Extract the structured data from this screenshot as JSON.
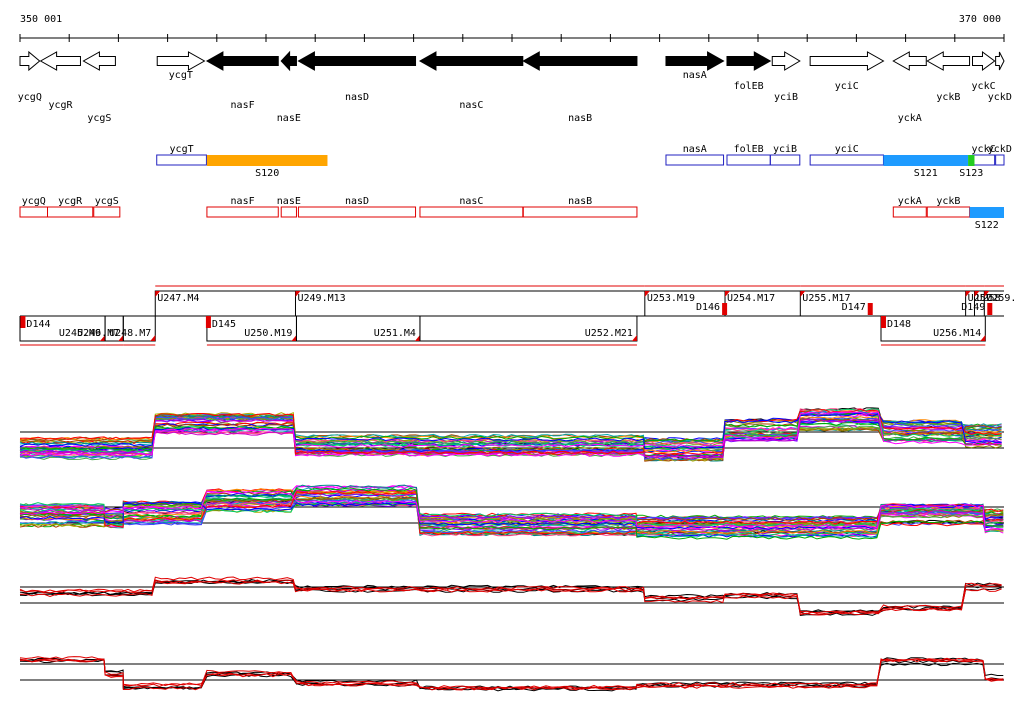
{
  "axis": {
    "start_label": "350 001",
    "end_label": "370 000",
    "start": 350001,
    "end": 370000
  },
  "colors": {
    "forward_gene": "#ffffff",
    "black_gene": "#000000",
    "blue_feature": "#2020c0",
    "red_feature": "#e00000",
    "orange_segment": "#ffa500",
    "sky_segment": "#1e9bff",
    "green_segment": "#22cc22",
    "red_trace": "#e00000",
    "black_trace": "#000000"
  },
  "genes": [
    {
      "name": "ycgQ",
      "start": 350001,
      "end": 350400,
      "strand": "+",
      "fill": "white"
    },
    {
      "name": "ycgR",
      "start": 350420,
      "end": 351230,
      "strand": "-",
      "fill": "white"
    },
    {
      "name": "ycgS",
      "start": 351290,
      "end": 351940,
      "strand": "-",
      "fill": "white"
    },
    {
      "name": "ycgT",
      "start": 352790,
      "end": 353750,
      "strand": "+",
      "fill": "white"
    },
    {
      "name": "nasF",
      "start": 353800,
      "end": 355250,
      "strand": "-",
      "fill": "black"
    },
    {
      "name": "nasE",
      "start": 355310,
      "end": 355620,
      "strand": "-",
      "fill": "black"
    },
    {
      "name": "nasD",
      "start": 355660,
      "end": 358040,
      "strand": "-",
      "fill": "black"
    },
    {
      "name": "nasC",
      "start": 358130,
      "end": 360220,
      "strand": "-",
      "fill": "black"
    },
    {
      "name": "nasB",
      "start": 360230,
      "end": 362540,
      "strand": "-",
      "fill": "black"
    },
    {
      "name": "nasA",
      "start": 363130,
      "end": 364300,
      "strand": "+",
      "fill": "black"
    },
    {
      "name": "folEB",
      "start": 364370,
      "end": 365250,
      "strand": "+",
      "fill": "black"
    },
    {
      "name": "yciB",
      "start": 365290,
      "end": 365850,
      "strand": "+",
      "fill": "white"
    },
    {
      "name": "yciC",
      "start": 366060,
      "end": 367550,
      "strand": "+",
      "fill": "white"
    },
    {
      "name": "yckA",
      "start": 367750,
      "end": 368420,
      "strand": "-",
      "fill": "white"
    },
    {
      "name": "yckB",
      "start": 368440,
      "end": 369300,
      "strand": "-",
      "fill": "white"
    },
    {
      "name": "yckC",
      "start": 369360,
      "end": 369810,
      "strand": "+",
      "fill": "white"
    },
    {
      "name": "yckD",
      "start": 369830,
      "end": 370000,
      "strand": "+",
      "fill": "white"
    }
  ],
  "forward_features": [
    {
      "name": "ycgT",
      "start": 352780,
      "end": 353790
    },
    {
      "name": "nasA",
      "start": 363130,
      "end": 364300
    },
    {
      "name": "folEB",
      "start": 364370,
      "end": 365250
    },
    {
      "name": "yciB",
      "start": 365250,
      "end": 365850
    },
    {
      "name": "yciC",
      "start": 366060,
      "end": 367550
    },
    {
      "name": "yckC",
      "start": 369360,
      "end": 369810
    },
    {
      "name": "yckD",
      "start": 369830,
      "end": 370000
    }
  ],
  "forward_segments": [
    {
      "name": "S120",
      "start": 353800,
      "end": 356250,
      "color": "orange"
    },
    {
      "name": "S121",
      "start": 367550,
      "end": 369270,
      "color": "sky"
    },
    {
      "name": "S123",
      "start": 369270,
      "end": 369400,
      "color": "green"
    }
  ],
  "reverse_features": [
    {
      "name": "ycgQ",
      "start": 350001,
      "end": 350560
    },
    {
      "name": "ycgR",
      "start": 350560,
      "end": 351480
    },
    {
      "name": "ycgS",
      "start": 351500,
      "end": 352030
    },
    {
      "name": "nasF",
      "start": 353800,
      "end": 355250
    },
    {
      "name": "nasE",
      "start": 355310,
      "end": 355620
    },
    {
      "name": "nasD",
      "start": 355660,
      "end": 358040
    },
    {
      "name": "nasC",
      "start": 358130,
      "end": 360220
    },
    {
      "name": "nasB",
      "start": 360230,
      "end": 362540
    },
    {
      "name": "yckA",
      "start": 367750,
      "end": 368420
    },
    {
      "name": "yckB",
      "start": 368440,
      "end": 369300
    }
  ],
  "reverse_segments": [
    {
      "name": "S122",
      "start": 369300,
      "end": 370000,
      "color": "sky"
    }
  ],
  "upper_transcripts": [
    {
      "name": "U247.M4",
      "start": 352750,
      "end": 355600
    },
    {
      "name": "U249.M13",
      "start": 355600,
      "end": 362700
    },
    {
      "name": "U253.M19",
      "start": 362700,
      "end": 364330
    },
    {
      "name": "U254.M17",
      "start": 364330,
      "end": 365860
    },
    {
      "name": "U255.M17",
      "start": 365860,
      "end": 369220
    },
    {
      "name": "U257",
      "start": 369220,
      "end": 369400
    },
    {
      "name": "U258",
      "start": 369400,
      "end": 369600
    },
    {
      "name": "U259.",
      "start": 369600,
      "end": 370000
    }
  ],
  "lower_transcripts": [
    {
      "name": "U245.M9",
      "start": 350001,
      "end": 351730
    },
    {
      "name": "U246.M7",
      "start": 351730,
      "end": 352100
    },
    {
      "name": "U248.M7",
      "start": 352100,
      "end": 352750
    },
    {
      "name": "U250.M19",
      "start": 353800,
      "end": 355620
    },
    {
      "name": "U251.M4",
      "start": 355620,
      "end": 358130
    },
    {
      "name": "U252.M21",
      "start": 358130,
      "end": 362540
    },
    {
      "name": "U256.M14",
      "start": 367500,
      "end": 369620
    }
  ],
  "downshifts": [
    {
      "name": "D144",
      "pos": 350030,
      "row": "lower"
    },
    {
      "name": "D145",
      "pos": 353800,
      "row": "lower"
    },
    {
      "name": "D146",
      "pos": 364230,
      "row": "upper"
    },
    {
      "name": "D147",
      "pos": 367190,
      "row": "upper"
    },
    {
      "name": "D148",
      "pos": 367520,
      "row": "lower"
    },
    {
      "name": "D149",
      "pos": 369620,
      "row": "upper"
    }
  ]
}
